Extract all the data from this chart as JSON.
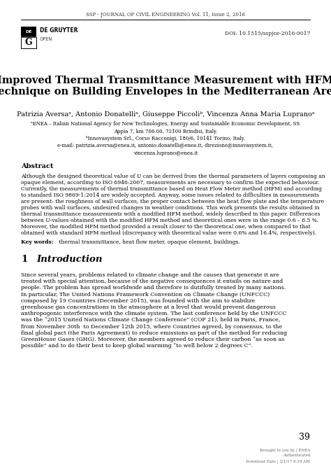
{
  "bg_color": "#ffffff",
  "header_text": "SSP - JOURNAL OF CIVIL ENGINEERING Vol. 11, Issue 2, 2016",
  "doi_text": "DOI: 10.1515/sspjce-2016-0017",
  "title_line1": "Improved Thermal Transmittance Measurement with HFM",
  "title_line2": "Technique on Building Envelopes in the Mediterranean Area",
  "authors_text": "Patrizia Aversaᵃ, Antonio Donatelliᵃ, Giuseppe Piccoliᵇ, Vincenza Anna Maria Lupranoᵃ",
  "affil1": "ᵃENEA – Italian National Agency for New Technologies, Energy and Sustainable Economic Development, SS",
  "affil2": "Appia 7, km 706.00, 72100 Brindisi, Italy.",
  "affil3": "ᵇInnovasystem Srl., Corso Racconigi, 180/6, 10141 Torino, Italy.",
  "affil4": "e-mail: patrizia.aversa@enea.it, antonio.donatelli@enea.it, direzione@innovasystem.it,",
  "affil5": "vincenza.luprano@enea.it",
  "abstract_label": "Abstract",
  "abstract_lines": [
    "Although the designed theoretical value of U can be derived from the thermal parameters of layers composing an",
    "opaque element, according to ISO 6946:2007, measurements are necessary to confirm the expected behaviour.",
    "Currently, the measurements of thermal transmittance based on Heat Flow Meter method (HFM) and according",
    "to standard ISO 9869-1:2014 are widely accepted. Anyway, some issues related to difficulties in measurements",
    "are present: the roughness of wall surfaces, the proper contact between the heat flow plate and the temperature",
    "probes with wall surfaces, undesired changes in weather conditions. This work presents the results obtained in",
    "thermal transmittance measurements with a modified HFM method, widely described in this paper. Differences",
    "between U-values obtained with the modified HFM method and theoretical ones were in the range 0.6 – 6.5 %.",
    "Moreover, the modified HFM method provided a result closer to the theoretical one, when compared to that",
    "obtained with standard HFM method (discrepancy with theoretical value were 0.6% and 16.4%, respectively)."
  ],
  "keywords_bold": "Key words:",
  "keywords_rest": " thermal transmittance, heat flow meter, opaque element, buildings.",
  "section1": "1   Introduction",
  "intro_lines": [
    "Since several years, problems related to climate change and the causes that generate it are",
    "treated with special attention, because of the negative consequences it entails on nature and",
    "people. The problem has spread worldwide and therefore is dutifully treated by many nations.",
    "In particular, The United Nations Framework Convention on Climate Change (UNFCCC)",
    "composed by 19 Countries (December 2015), was founded with the aim to stabilize",
    "greenhouse gas concentrations in the atmosphere at a level that would prevent dangerous",
    "anthropogenic interference with the climate system. The last conference held by the UNFCCC",
    "was the “2015 United Nations Climate Change Conference” (COP 21), held in Paris, France,",
    "from November 30th  to December 12th 2015, where Countries agreed, by consensus, to the",
    "final global pact (the Paris Agreement) to reduce emissions as part of the method for reducing",
    "GreenHouse Gases (GHG). Moreover, the members agreed to reduce their carbon “as soon as",
    "possible” and to do their best to keep global warming “to well below 2 degrees C”."
  ],
  "page_number": "39",
  "footer_lines": [
    "Brought to you by | ENEA",
    "Authenticated",
    "Download Date | 2/1/17 9:19 AM"
  ]
}
